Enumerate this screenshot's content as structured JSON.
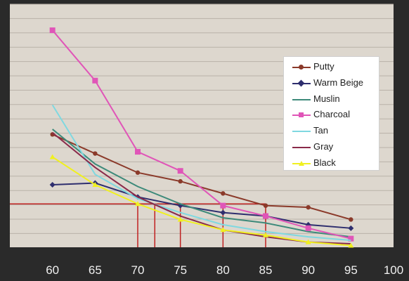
{
  "chart_data": {
    "type": "line",
    "title": "",
    "xlabel": "",
    "ylabel": "",
    "xlim": [
      55,
      100
    ],
    "ylim": [
      0,
      14
    ],
    "x_ticks": [
      "60",
      "65",
      "70",
      "75",
      "80",
      "85",
      "90",
      "95",
      "100"
    ],
    "x": [
      60,
      65,
      70,
      75,
      80,
      85,
      90,
      95
    ],
    "grid": true,
    "legend_position": "right",
    "series": [
      {
        "name": "Putty",
        "color": "#8b3a2a",
        "marker": "circle",
        "values": [
          6.5,
          5.4,
          4.3,
          3.8,
          3.1,
          2.4,
          2.3,
          1.6
        ]
      },
      {
        "name": "Warm Beige",
        "color": "#2e2e6e",
        "marker": "diamond",
        "values": [
          3.6,
          3.7,
          2.9,
          2.4,
          2.0,
          1.8,
          1.3,
          1.1
        ]
      },
      {
        "name": "Muslin",
        "color": "#3d8a7a",
        "marker": "none",
        "values": [
          6.8,
          4.8,
          3.5,
          2.5,
          1.7,
          1.4,
          0.9,
          0.6
        ]
      },
      {
        "name": "Charcoal",
        "color": "#e055b8",
        "marker": "square",
        "values": [
          12.5,
          9.6,
          5.5,
          4.4,
          2.4,
          1.8,
          1.1,
          0.5
        ]
      },
      {
        "name": "Tan",
        "color": "#7fd8e0",
        "marker": "none",
        "values": [
          8.2,
          4.2,
          2.8,
          2.0,
          1.3,
          0.9,
          0.6,
          0.4
        ]
      },
      {
        "name": "Gray",
        "color": "#8a2a4a",
        "marker": "none",
        "values": [
          6.6,
          4.6,
          2.9,
          1.8,
          1.0,
          0.6,
          0.3,
          0.2
        ]
      },
      {
        "name": "Black",
        "color": "#f0f020",
        "marker": "triangle",
        "values": [
          5.2,
          3.6,
          2.5,
          1.6,
          1.0,
          0.7,
          0.3,
          0.1
        ]
      }
    ],
    "reference_lines": {
      "color": "#c02020",
      "horizontal_y": 2.5,
      "vertical_x": [
        70,
        72,
        75,
        80,
        85
      ]
    }
  }
}
